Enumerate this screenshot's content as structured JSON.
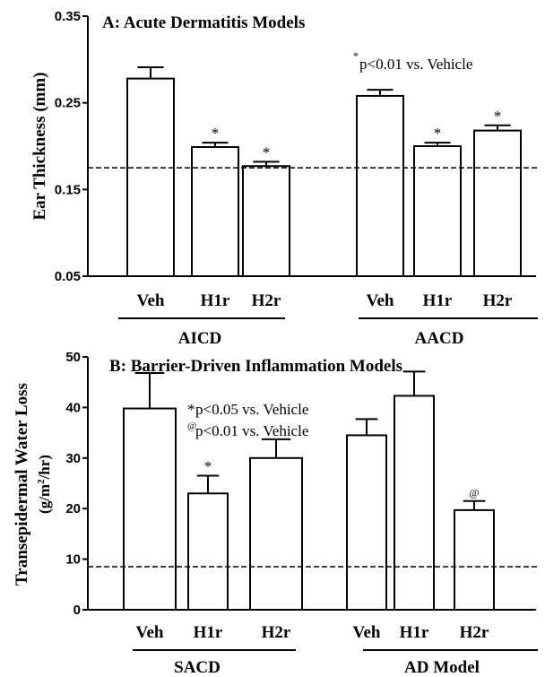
{
  "chart_data": [
    {
      "type": "bar",
      "title": "A: Acute Dermatitis Models",
      "ylabel": "Ear Thickness (mm)",
      "ylim": [
        0.05,
        0.35
      ],
      "yticks": [
        "0.05",
        "0.15",
        "0.25",
        "0.35"
      ],
      "annotation": {
        "marker": "*",
        "text": "p<0.01 vs. Vehicle"
      },
      "baseline": 0.175,
      "groups": [
        {
          "label": "AICD",
          "bars": [
            {
              "category": "Veh",
              "value": 0.278,
              "error": 0.013,
              "mark": ""
            },
            {
              "category": "H1r",
              "value": 0.199,
              "error": 0.005,
              "mark": "*"
            },
            {
              "category": "H2r",
              "value": 0.177,
              "error": 0.005,
              "mark": "*"
            }
          ]
        },
        {
          "label": "AACD",
          "bars": [
            {
              "category": "Veh",
              "value": 0.258,
              "error": 0.007,
              "mark": ""
            },
            {
              "category": "H1r",
              "value": 0.2,
              "error": 0.004,
              "mark": "*"
            },
            {
              "category": "H2r",
              "value": 0.218,
              "error": 0.006,
              "mark": "*"
            }
          ]
        }
      ]
    },
    {
      "type": "bar",
      "title": "B: Barrier-Driven Inflammation Models",
      "ylabel_line1": "Transepidermal Water Loss",
      "ylabel_line2_prefix": "(g/m",
      "ylabel_line2_sup": "2",
      "ylabel_line2_suffix": "/hr)",
      "ylim": [
        0,
        50
      ],
      "yticks": [
        "0",
        "10",
        "20",
        "30",
        "40",
        "50"
      ],
      "annotations": [
        {
          "marker": "*",
          "text": "p<0.05 vs. Vehicle"
        },
        {
          "marker": "@",
          "text": "p<0.01 vs. Vehicle"
        }
      ],
      "baseline": 8.5,
      "groups": [
        {
          "label": "SACD",
          "bars": [
            {
              "category": "Veh",
              "value": 39.8,
              "error": 7.0,
              "mark": ""
            },
            {
              "category": "H1r",
              "value": 23.0,
              "error": 3.5,
              "mark": "*"
            },
            {
              "category": "H2r",
              "value": 30.0,
              "error": 3.7,
              "mark": ""
            }
          ]
        },
        {
          "label": "AD Model",
          "bars": [
            {
              "category": "Veh",
              "value": 34.5,
              "error": 3.2,
              "mark": ""
            },
            {
              "category": "H1r",
              "value": 42.3,
              "error": 4.8,
              "mark": ""
            },
            {
              "category": "H2r",
              "value": 19.7,
              "error": 1.8,
              "mark": "@"
            }
          ]
        }
      ]
    }
  ]
}
